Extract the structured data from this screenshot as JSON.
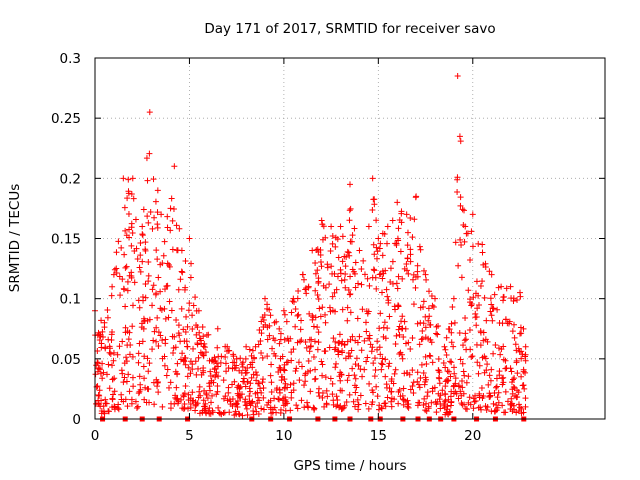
{
  "chart_data": {
    "type": "scatter",
    "title": "Day 171 of 2017, SRMTID for receiver savo",
    "xlabel": "GPS time / hours",
    "ylabel": "SRMTID / TECUs",
    "xlim": [
      0,
      27
    ],
    "ylim": [
      0,
      0.3
    ],
    "x_ticks": [
      0,
      5,
      10,
      15,
      20
    ],
    "x_tick_labels": [
      "0",
      "5",
      "10",
      "15",
      "20"
    ],
    "y_ticks": [
      0,
      0.05,
      0.1,
      0.15,
      0.2,
      0.25,
      0.3
    ],
    "y_tick_labels": [
      "0",
      "0.05",
      "0.1",
      "0.15",
      "0.2",
      "0.25",
      "0.3"
    ],
    "grid": true,
    "marker": "plus",
    "color": "#ff0000",
    "envelope_note": "approximate upper envelope of the scatter cloud (hour, SRMTID)",
    "envelope": [
      [
        0.0,
        0.09
      ],
      [
        0.5,
        0.08
      ],
      [
        1.0,
        0.12
      ],
      [
        1.5,
        0.2
      ],
      [
        2.0,
        0.2
      ],
      [
        2.5,
        0.16
      ],
      [
        2.9,
        0.255
      ],
      [
        3.5,
        0.17
      ],
      [
        4.0,
        0.175
      ],
      [
        4.2,
        0.21
      ],
      [
        4.6,
        0.14
      ],
      [
        5.0,
        0.15
      ],
      [
        5.5,
        0.09
      ],
      [
        6.0,
        0.07
      ],
      [
        6.5,
        0.075
      ],
      [
        7.0,
        0.06
      ],
      [
        7.5,
        0.05
      ],
      [
        8.0,
        0.06
      ],
      [
        8.5,
        0.06
      ],
      [
        9.0,
        0.1
      ],
      [
        9.5,
        0.08
      ],
      [
        10.0,
        0.09
      ],
      [
        10.5,
        0.1
      ],
      [
        11.0,
        0.12
      ],
      [
        11.5,
        0.14
      ],
      [
        12.0,
        0.165
      ],
      [
        12.5,
        0.16
      ],
      [
        13.0,
        0.16
      ],
      [
        13.5,
        0.195
      ],
      [
        14.0,
        0.14
      ],
      [
        14.5,
        0.16
      ],
      [
        14.7,
        0.2
      ],
      [
        15.0,
        0.15
      ],
      [
        15.5,
        0.16
      ],
      [
        16.0,
        0.18
      ],
      [
        16.5,
        0.17
      ],
      [
        17.0,
        0.185
      ],
      [
        17.5,
        0.12
      ],
      [
        18.0,
        0.1
      ],
      [
        18.5,
        0.06
      ],
      [
        19.0,
        0.1
      ],
      [
        19.2,
        0.285
      ],
      [
        19.6,
        0.16
      ],
      [
        20.0,
        0.17
      ],
      [
        20.5,
        0.145
      ],
      [
        21.0,
        0.12
      ],
      [
        21.5,
        0.11
      ],
      [
        22.0,
        0.11
      ],
      [
        22.5,
        0.105
      ],
      [
        22.8,
        0.06
      ]
    ],
    "zero_markers": [
      0.4,
      1.6,
      2.5,
      3.4,
      4.9,
      8.3,
      9.3,
      10.3,
      11.8,
      12.7,
      13.5,
      14.6,
      15.1,
      16.3,
      17.1,
      17.7,
      18.3,
      19.0,
      20.2,
      21.2,
      22.7
    ]
  }
}
